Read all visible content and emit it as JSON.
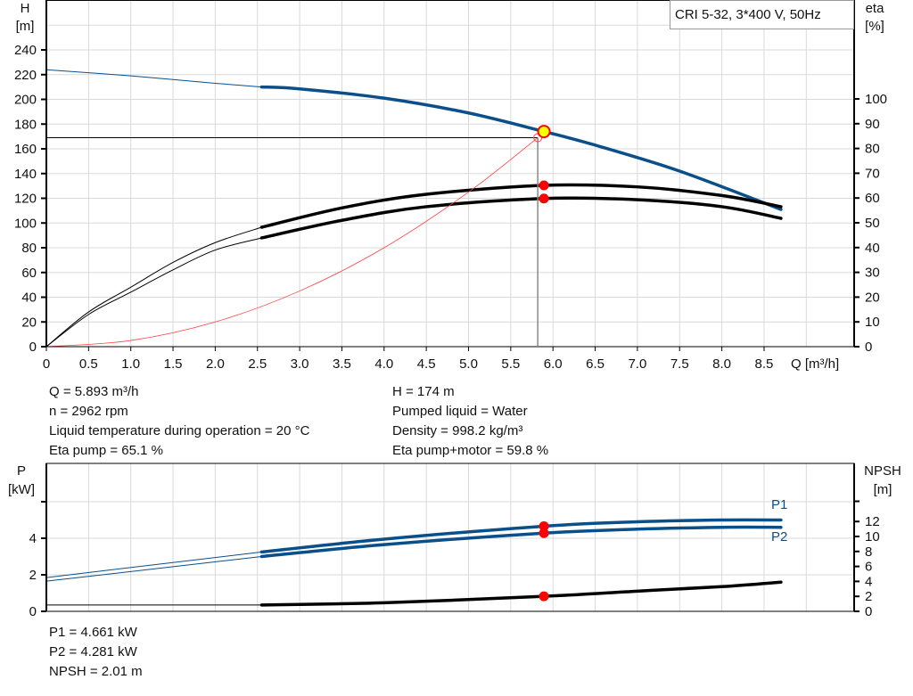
{
  "chart_data": [
    {
      "type": "line",
      "title": "CRI 5-32, 3*400 V, 50Hz",
      "xlabel": "Q [m³/h]",
      "y_left": {
        "label": "H",
        "unit": "[m]",
        "lim": [
          0,
          260
        ],
        "ticks": [
          0,
          20,
          40,
          60,
          80,
          100,
          120,
          140,
          160,
          180,
          200,
          220,
          240
        ]
      },
      "y_right": {
        "label": "eta",
        "unit": "[%]",
        "lim": [
          0,
          100
        ],
        "ticks": [
          0,
          10,
          20,
          30,
          40,
          50,
          60,
          70,
          80,
          90,
          100
        ]
      },
      "x_ticks": [
        "0",
        "0.5",
        "1.0",
        "1.5",
        "2.0",
        "2.5",
        "3.0",
        "3.5",
        "4.0",
        "4.5",
        "5.0",
        "5.5",
        "6.0",
        "6.5",
        "7.0",
        "7.5",
        "8.0",
        "8.5"
      ],
      "xlim": [
        0,
        9.5
      ],
      "grid": true,
      "legend": "top-right",
      "series": [
        {
          "key": "H",
          "axis": "left",
          "color": "#0b4f8a",
          "thin": [
            [
              0,
              224
            ],
            [
              1,
              219
            ],
            [
              2,
              213
            ],
            [
              2.55,
              210
            ]
          ],
          "thick": [
            [
              2.55,
              210
            ],
            [
              3,
              208.5
            ],
            [
              4,
              201
            ],
            [
              5,
              189
            ],
            [
              5.893,
              174
            ],
            [
              6.5,
              163
            ],
            [
              7.5,
              142
            ],
            [
              8.7,
              111
            ]
          ]
        },
        {
          "key": "eta_pump",
          "axis": "right",
          "color": "#000000",
          "thin": [
            [
              0,
              0
            ],
            [
              0.5,
              14
            ],
            [
              1,
              24
            ],
            [
              1.5,
              34
            ],
            [
              2,
              42
            ],
            [
              2.55,
              48.2
            ]
          ],
          "thick": [
            [
              2.55,
              48.2
            ],
            [
              3.5,
              56
            ],
            [
              4.5,
              61.5
            ],
            [
              5.893,
              65.1
            ],
            [
              7,
              64.5
            ],
            [
              8,
              61
            ],
            [
              8.7,
              56.5
            ]
          ]
        },
        {
          "key": "eta_pump_motor",
          "axis": "right",
          "color": "#000000",
          "thin": [
            [
              0,
              0
            ],
            [
              0.5,
              13
            ],
            [
              1,
              22
            ],
            [
              1.5,
              31
            ],
            [
              2,
              39
            ],
            [
              2.55,
              43.9
            ]
          ],
          "thick": [
            [
              2.55,
              43.9
            ],
            [
              3.5,
              51
            ],
            [
              4.5,
              56.5
            ],
            [
              5.893,
              59.8
            ],
            [
              7,
              59.3
            ],
            [
              8,
              56.5
            ],
            [
              8.7,
              51.8
            ]
          ]
        },
        {
          "key": "system",
          "axis": "left",
          "color": "#ff4040",
          "thin": [
            [
              0,
              0
            ],
            [
              1,
              5
            ],
            [
              2,
              20
            ],
            [
              3,
              45
            ],
            [
              4,
              80
            ],
            [
              5,
              125
            ],
            [
              5.82,
              169
            ]
          ]
        }
      ],
      "duty_point": {
        "Q": 5.893,
        "H": 174
      },
      "required_point": {
        "Q": 5.82,
        "H": 169
      },
      "eta_points": [
        65.1,
        59.8
      ]
    },
    {
      "type": "line",
      "y_left": {
        "label": "P",
        "unit": "[kW]",
        "lim": [
          0,
          8
        ],
        "ticks": [
          0,
          2,
          4,
          6
        ],
        "tick_labels": [
          "0",
          "2",
          "4",
          ""
        ]
      },
      "y_right": {
        "label": "NPSH",
        "unit": "[m]",
        "ticks": [
          0,
          2,
          4,
          6,
          8,
          10,
          12,
          14.7
        ],
        "tick_labels": [
          "0",
          "2",
          "4",
          "6",
          "8",
          "10",
          "12",
          ""
        ]
      },
      "xlim": [
        0,
        9.5
      ],
      "grid": true,
      "series": [
        {
          "key": "P1",
          "name": "P1",
          "axis": "left",
          "color": "#0b4f8a",
          "thin": [
            [
              0,
              1.85
            ],
            [
              2.55,
              3.25
            ]
          ],
          "thick": [
            [
              2.55,
              3.25
            ],
            [
              4,
              3.95
            ],
            [
              5.893,
              4.661
            ],
            [
              7,
              4.9
            ],
            [
              8,
              5.0
            ],
            [
              8.7,
              5.0
            ]
          ]
        },
        {
          "key": "P2",
          "name": "P2",
          "axis": "left",
          "color": "#0b4f8a",
          "thin": [
            [
              0,
              1.65
            ],
            [
              2.55,
              3.0
            ]
          ],
          "thick": [
            [
              2.55,
              3.0
            ],
            [
              4,
              3.65
            ],
            [
              5.893,
              4.281
            ],
            [
              7,
              4.5
            ],
            [
              8,
              4.6
            ],
            [
              8.7,
              4.6
            ]
          ]
        },
        {
          "key": "NPSH",
          "axis": "right",
          "color": "#000000",
          "thin": [
            [
              0,
              0.85
            ],
            [
              2.55,
              0.85
            ]
          ],
          "thick": [
            [
              2.55,
              0.85
            ],
            [
              4,
              1.15
            ],
            [
              5.893,
              2.01
            ],
            [
              7,
              2.7
            ],
            [
              8,
              3.3
            ],
            [
              8.7,
              3.9
            ]
          ]
        }
      ],
      "duty_Q": 5.893
    }
  ],
  "info_top": {
    "left": [
      "Q = 5.893 m³/h",
      "n = 2962 rpm",
      "Liquid temperature during operation = 20 °C",
      "Eta pump = 65.1 %"
    ],
    "right": [
      "H = 174 m",
      "Pumped liquid = Water",
      "Density = 998.2 kg/m³",
      "Eta pump+motor = 59.8 %"
    ]
  },
  "info_bottom": [
    "P1 = 4.661 kW",
    "P2 = 4.281 kW",
    "NPSH = 2.01 m"
  ],
  "colors": {
    "curve_blue": "#0b4f8a",
    "point_red": "#ff0000",
    "duty_yellow": "#ffff00",
    "grid": "#d9d9d9"
  }
}
